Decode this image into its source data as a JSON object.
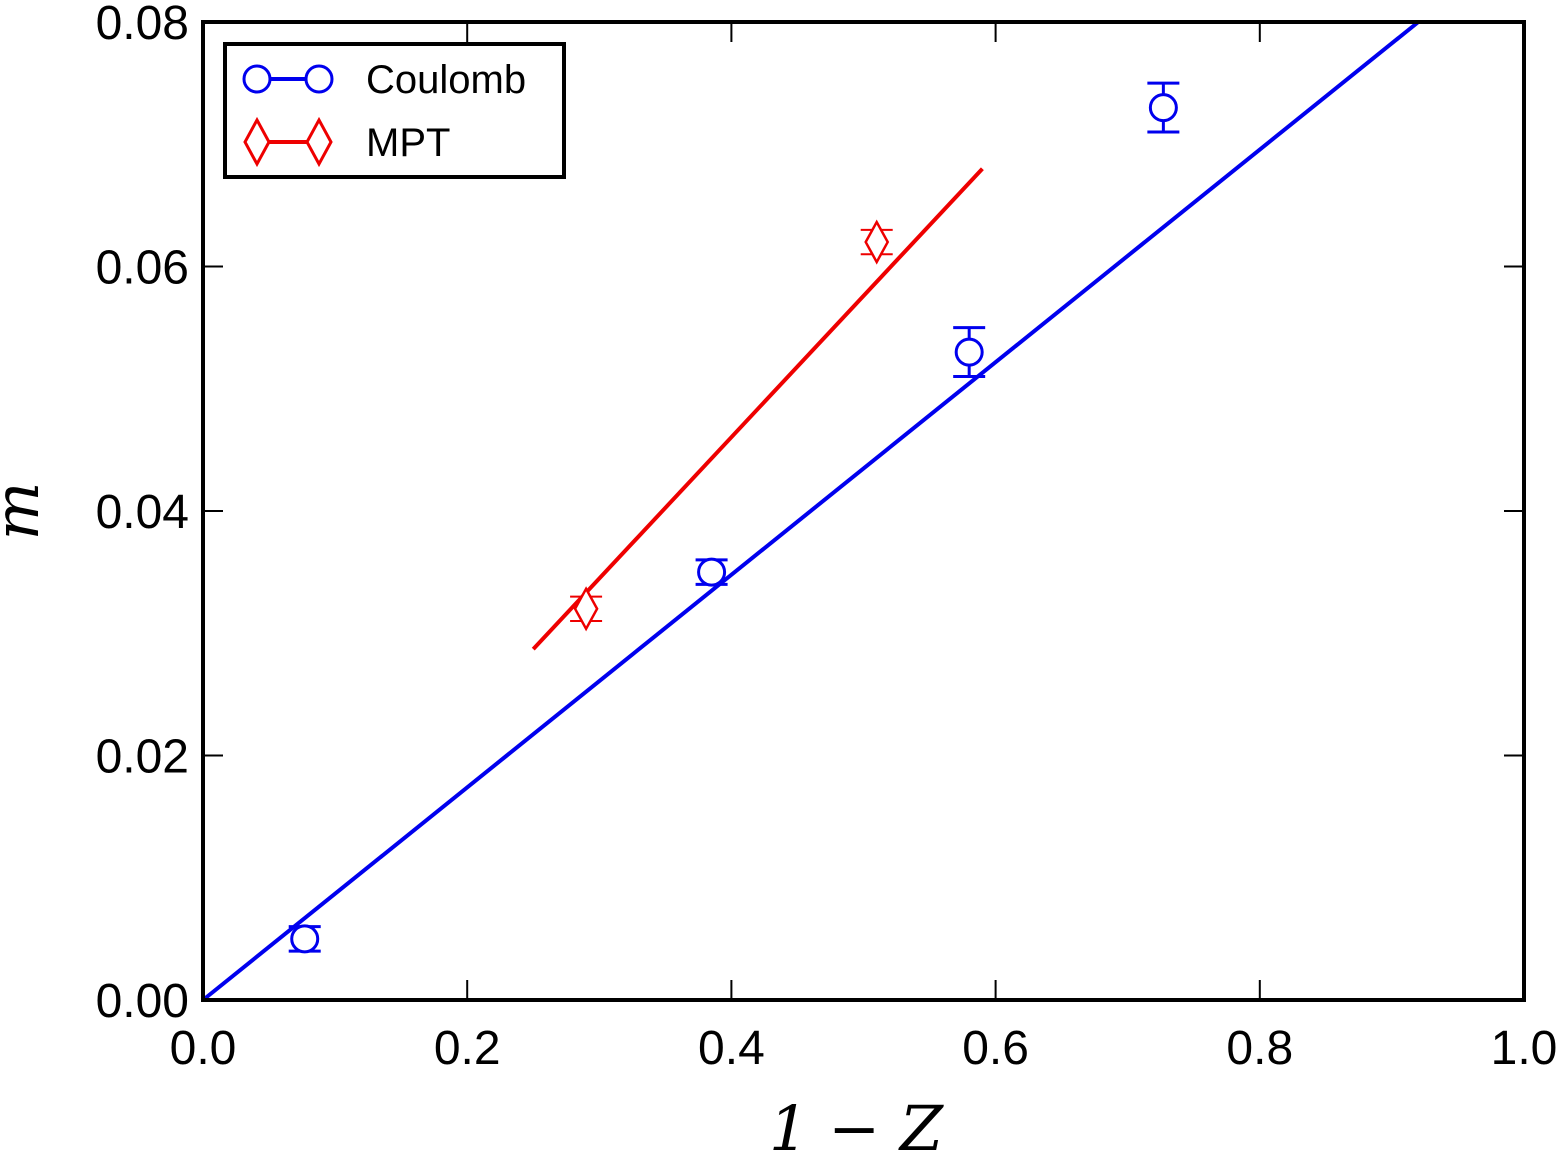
{
  "chart_data": {
    "type": "scatter",
    "xlabel": "1 − Z",
    "ylabel": "m",
    "xlim": [
      0.0,
      1.0
    ],
    "ylim": [
      0.0,
      0.08
    ],
    "xticks": [
      "0.0",
      "0.2",
      "0.4",
      "0.6",
      "0.8",
      "1.0"
    ],
    "yticks": [
      "0.00",
      "0.02",
      "0.04",
      "0.06",
      "0.08"
    ],
    "xtick_values": [
      0.0,
      0.2,
      0.4,
      0.6,
      0.8,
      1.0
    ],
    "ytick_values": [
      0.0,
      0.02,
      0.04,
      0.06,
      0.08
    ],
    "grid": false,
    "legend_position": "top-left",
    "series": [
      {
        "name": "Coulomb",
        "color": "#0000ee",
        "marker": "circle",
        "x": [
          0.077,
          0.385,
          0.58,
          0.727
        ],
        "y": [
          0.005,
          0.035,
          0.053,
          0.073
        ],
        "yerr": [
          0.001,
          0.001,
          0.002,
          0.002
        ],
        "fit": {
          "x": [
            0.0,
            0.92
          ],
          "y": [
            0.0,
            0.08
          ]
        }
      },
      {
        "name": "MPT",
        "color": "#ee0000",
        "marker": "diamond",
        "x": [
          0.29,
          0.51
        ],
        "y": [
          0.032,
          0.062
        ],
        "yerr": [
          0.001,
          0.001
        ],
        "fit": {
          "x": [
            0.25,
            0.59
          ],
          "y": [
            0.0287,
            0.068
          ]
        }
      }
    ]
  }
}
